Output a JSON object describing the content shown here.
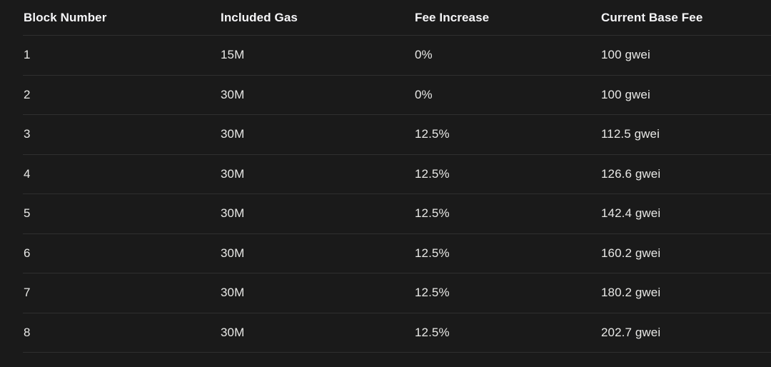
{
  "table": {
    "columns": [
      "Block Number",
      "Included Gas",
      "Fee Increase",
      "Current Base Fee"
    ],
    "rows": [
      [
        "1",
        "15M",
        "0%",
        "100 gwei"
      ],
      [
        "2",
        "30M",
        "0%",
        "100 gwei"
      ],
      [
        "3",
        "30M",
        "12.5%",
        "112.5 gwei"
      ],
      [
        "4",
        "30M",
        "12.5%",
        "126.6 gwei"
      ],
      [
        "5",
        "30M",
        "12.5%",
        "142.4 gwei"
      ],
      [
        "6",
        "30M",
        "12.5%",
        "160.2 gwei"
      ],
      [
        "7",
        "30M",
        "12.5%",
        "180.2 gwei"
      ],
      [
        "8",
        "30M",
        "12.5%",
        "202.7 gwei"
      ]
    ]
  },
  "chart_data": {
    "type": "table",
    "title": "",
    "columns": [
      "Block Number",
      "Included Gas",
      "Fee Increase",
      "Current Base Fee"
    ],
    "block_number": [
      1,
      2,
      3,
      4,
      5,
      6,
      7,
      8
    ],
    "included_gas": [
      "15M",
      "30M",
      "30M",
      "30M",
      "30M",
      "30M",
      "30M",
      "30M"
    ],
    "fee_increase_percent": [
      0,
      0,
      12.5,
      12.5,
      12.5,
      12.5,
      12.5,
      12.5
    ],
    "current_base_fee_gwei": [
      100,
      100,
      112.5,
      126.6,
      142.4,
      160.2,
      180.2,
      202.7
    ]
  },
  "colors": {
    "background": "#1a1a1a",
    "divider": "#2f2f2f",
    "header_text": "#f5f5f7",
    "cell_text": "#e8e8e6"
  }
}
